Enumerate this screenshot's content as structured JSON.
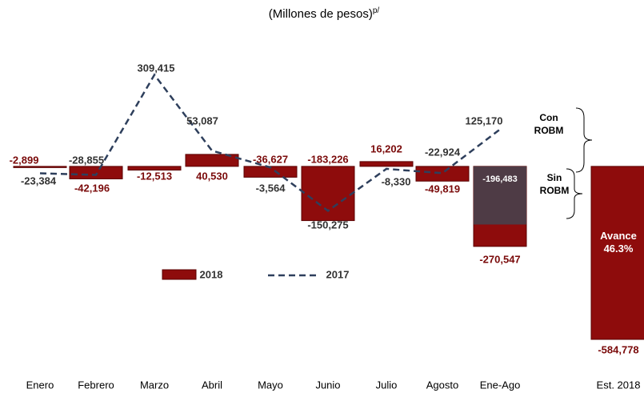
{
  "chart_data": {
    "type": "bar-line",
    "title": "(Millones de pesos)",
    "title_note": "p/",
    "categories": [
      "Enero",
      "Febrero",
      "Marzo",
      "Abril",
      "Mayo",
      "Junio",
      "Julio",
      "Agosto",
      "Ene-Ago",
      "Est. 2018"
    ],
    "series": [
      {
        "name": "2018",
        "type": "bar",
        "color": "#8e0c0c",
        "values": [
          -2899,
          -42196,
          -12513,
          40530,
          -36627,
          -183226,
          16202,
          -49819,
          -270547,
          -584778
        ],
        "value_labels": [
          "-2,899",
          "-42,196",
          "-12,513",
          "40,530",
          "-36,627",
          "-183,226",
          "16,202",
          "-49,819",
          "-270,547",
          "-584,778"
        ]
      },
      {
        "name": "2017",
        "type": "line",
        "color": "#2e3f5c",
        "values": [
          -23384,
          -28855,
          309415,
          53087,
          -3564,
          -150275,
          -8330,
          -22924,
          125170,
          null
        ],
        "value_labels": [
          "-23,384",
          "-28,855",
          "309,415",
          "53,087",
          "-3,564",
          "-150,275",
          "-8,330",
          "-22,924",
          "125,170",
          null
        ]
      },
      {
        "name": "Sin ROBM",
        "type": "bar",
        "color": "#4e3b45",
        "values": [
          null,
          null,
          null,
          null,
          null,
          null,
          null,
          null,
          -196483,
          null
        ],
        "value_labels": [
          null,
          null,
          null,
          null,
          null,
          null,
          null,
          null,
          "-196,483",
          null
        ]
      }
    ],
    "annotations": [
      "Con ROBM",
      "Avance 46.3%"
    ]
  }
}
